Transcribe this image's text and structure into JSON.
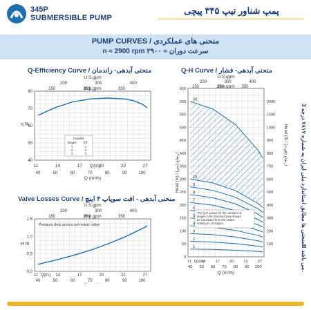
{
  "header": {
    "model_code": "345P",
    "model_name": "SUBMERSIBLE PUMP",
    "title_fa": "پمپ شناور تیپ ۳۴۵ پیچی"
  },
  "banner": {
    "title": "PUMP CURVES  /  منحنی های عملکردی",
    "speed": "n ≈ 2900 rpm     سرعت دوران ≈ ۲۹۰۰"
  },
  "side_note": "منحنی ها مطابق استاندارد ملی ایران به شماره ۷۸۱۷ درجه 3B می باشد.",
  "colors": {
    "brand": "#1f3f77",
    "curve": "#1a6fb0",
    "accent": "#f0b429",
    "banner": "#cfe3f4"
  },
  "chart_data": [
    {
      "type": "line",
      "title": "Q-Efficiency Curve / منحنی آبدهی- راندمان",
      "ylabel": "η %",
      "xlabel_bottom": "Q (m³/h)",
      "xlabel_mid": "Q(l/s)",
      "top_axis_label": "U.S.gpm",
      "top_axis_label2": "Imp.gpm",
      "ylim": [
        40,
        80
      ],
      "xlim": [
        38,
        105
      ],
      "yticks": [
        40,
        50,
        60,
        70,
        80
      ],
      "xticks_m3h": [
        40,
        50,
        60,
        70,
        80,
        90,
        100
      ],
      "xticks_ls": [
        "11",
        "14",
        "17",
        "20",
        "22",
        "27"
      ],
      "xticks_usgpm": [
        "200",
        "300",
        "400"
      ],
      "xticks_impgpm": [
        "150",
        "250",
        "350"
      ],
      "series": [
        {
          "x": [
            40,
            50,
            60,
            70,
            80,
            90,
            95,
            100,
            103
          ],
          "values": [
            66,
            70.5,
            73.8,
            75.5,
            76,
            75.5,
            74.5,
            72.5,
            70.5
          ]
        }
      ],
      "inset_table": {
        "title": "Impeller",
        "headers": [
          "Stages",
          "Eff."
        ],
        "rows": [
          [
            "1",
            "1"
          ],
          [
            "2",
            "2"
          ],
          [
            "3",
            "3"
          ]
        ]
      }
    },
    {
      "type": "line",
      "title": "Valve Losses Curve / منحنی آبدهی - افت سوپاپ ۴ اینچ",
      "ylabel": "H m",
      "xlabel_bottom": "Q (m³/h)",
      "xlabel_mid": "Q(l/s)",
      "top_axis_label": "U.S.gpm",
      "top_axis_label2": "Imp.gpm",
      "annotation": "Pressure drop across non-return valve",
      "ylim": [
        0,
        1.5
      ],
      "xlim": [
        38,
        105
      ],
      "yticks": [
        0,
        0.5,
        1.0,
        1.5
      ],
      "xticks_m3h": [
        40,
        50,
        60,
        70,
        80,
        90,
        100
      ],
      "xticks_ls": [
        "11",
        "14",
        "17",
        "20",
        "22",
        "27"
      ],
      "xticks_usgpm": [
        "200",
        "300",
        "400"
      ],
      "xticks_impgpm": [
        "150",
        "250",
        "350"
      ],
      "series": [
        {
          "x": [
            40,
            50,
            60,
            70,
            80,
            90,
            100,
            103
          ],
          "values": [
            0.2,
            0.32,
            0.45,
            0.6,
            0.78,
            0.98,
            1.22,
            1.3
          ]
        }
      ]
    },
    {
      "type": "line",
      "title": "Q-H Curve / منحنی آبدهی- فشار",
      "ylabel": "Head (m) / ارتفاع (متر)",
      "ylabel_right": "Head (ft) / ارتفاع (فوت)",
      "xlabel_bottom": "Q (m³/h)",
      "xlabel_mid": "Q(l/s)",
      "top_axis_label": "U.S.gpm",
      "top_axis_label2": "Imp.gpm",
      "note": "The Q-H values for the numbers of stages in the hatched zone should be calculated from the values relating to 19 stages.",
      "ylim": [
        0,
        650
      ],
      "xlim": [
        38,
        105
      ],
      "yticks": [
        0,
        50,
        100,
        150,
        200,
        250,
        300,
        350,
        400,
        450,
        500,
        550,
        600,
        650
      ],
      "yticks_ft": [
        "100",
        "200",
        "300",
        "400",
        "500",
        "600",
        "700",
        "800",
        "900",
        "1000",
        "1500",
        "2000"
      ],
      "xticks_m3h": [
        40,
        50,
        60,
        70,
        80,
        90,
        100
      ],
      "xticks_ls": [
        "11",
        "14",
        "17",
        "20",
        "22",
        "27"
      ],
      "xticks_usgpm": [
        "200",
        "300",
        "400"
      ],
      "xticks_impgpm": [
        "150",
        "250",
        "350"
      ],
      "hatched_range": [
        330,
        630
      ],
      "stage_labels": [
        "20",
        "10",
        "9",
        "8",
        "7",
        "6",
        "5",
        "4",
        "3",
        "2",
        "1"
      ],
      "series": [
        {
          "name": "1",
          "x": [
            40,
            60,
            80,
            100,
            104
          ],
          "values": [
            30,
            28.5,
            25.5,
            20.5,
            19
          ]
        },
        {
          "name": "2",
          "x": [
            40,
            60,
            80,
            100,
            104
          ],
          "values": [
            60,
            57,
            51,
            41,
            38
          ]
        },
        {
          "name": "3",
          "x": [
            40,
            60,
            80,
            100,
            104
          ],
          "values": [
            90,
            85.5,
            76.5,
            61.5,
            57
          ]
        },
        {
          "name": "4",
          "x": [
            40,
            60,
            80,
            100,
            104
          ],
          "values": [
            120,
            114,
            102,
            82,
            76
          ]
        },
        {
          "name": "5",
          "x": [
            40,
            60,
            80,
            100,
            104
          ],
          "values": [
            150,
            142.5,
            127.5,
            102.5,
            95
          ]
        },
        {
          "name": "6",
          "x": [
            40,
            60,
            80,
            100,
            104
          ],
          "values": [
            180,
            171,
            153,
            123,
            114
          ]
        },
        {
          "name": "7",
          "x": [
            40,
            60,
            80,
            100,
            104
          ],
          "values": [
            210,
            199.5,
            178.5,
            143.5,
            133
          ]
        },
        {
          "name": "8",
          "x": [
            40,
            60,
            80,
            100,
            104
          ],
          "values": [
            240,
            228,
            204,
            164,
            152
          ]
        },
        {
          "name": "9",
          "x": [
            40,
            60,
            80,
            100,
            104
          ],
          "values": [
            270,
            256.5,
            229.5,
            184.5,
            171
          ]
        },
        {
          "name": "10",
          "x": [
            40,
            60,
            80,
            100,
            104
          ],
          "values": [
            300,
            285,
            255,
            205,
            190
          ]
        },
        {
          "name": "20",
          "x": [
            40,
            60,
            80,
            100,
            104
          ],
          "values": [
            600,
            570,
            510,
            410,
            380
          ]
        }
      ]
    }
  ]
}
